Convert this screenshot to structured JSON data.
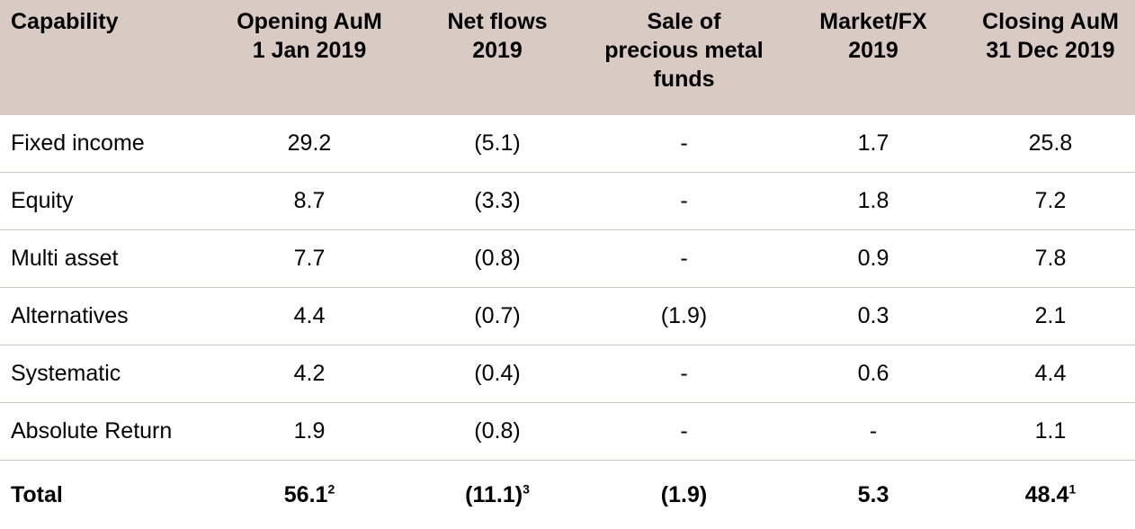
{
  "table": {
    "headers": [
      [
        "Capability"
      ],
      [
        "Opening AuM",
        "1 Jan 2019"
      ],
      [
        "Net flows",
        "2019"
      ],
      [
        "Sale of",
        "precious metal",
        "funds"
      ],
      [
        "Market/FX",
        "2019"
      ],
      [
        "Closing AuM",
        "31 Dec 2019"
      ]
    ],
    "rows": [
      [
        "Fixed income",
        "29.2",
        "(5.1)",
        "-",
        "1.7",
        "25.8"
      ],
      [
        "Equity",
        "8.7",
        "(3.3)",
        "-",
        "1.8",
        "7.2"
      ],
      [
        "Multi asset",
        "7.7",
        "(0.8)",
        "-",
        "0.9",
        "7.8"
      ],
      [
        "Alternatives",
        "4.4",
        "(0.7)",
        "(1.9)",
        "0.3",
        "2.1"
      ],
      [
        "Systematic",
        "4.2",
        "(0.4)",
        "-",
        "0.6",
        "4.4"
      ],
      [
        "Absolute Return",
        "1.9",
        "(0.8)",
        "-",
        "-",
        "1.1"
      ]
    ],
    "total": {
      "label": "Total",
      "values": [
        "56.1",
        "(11.1)",
        "(1.9)",
        "5.3",
        "48.4"
      ],
      "footnotes": [
        "2",
        "3",
        "",
        "",
        "1"
      ]
    }
  },
  "colors": {
    "header_background": "#d9cbc4",
    "row_separator": "#d6ccc6"
  }
}
